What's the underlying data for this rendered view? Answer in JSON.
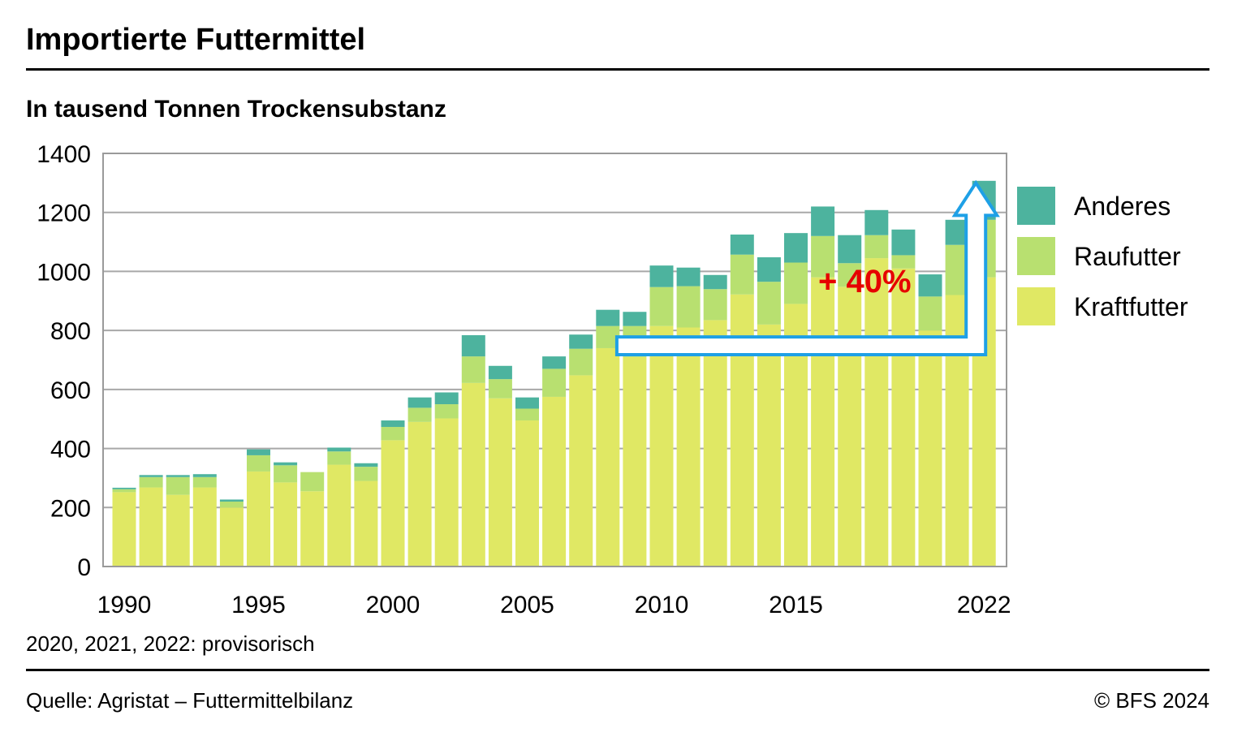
{
  "header": {
    "title": "Importierte Futtermittel",
    "subtitle": "In tausend Tonnen Trockensubstanz"
  },
  "footer": {
    "note": "2020, 2021, 2022: provisorisch",
    "source": "Quelle: Agristat – Futtermittelbilanz",
    "copyright": "© BFS 2024"
  },
  "annotation": {
    "label": "+ 40%",
    "color": "#e60000",
    "arrow_color": "#1ea0e6",
    "from_year": 2009,
    "to_year": 2022
  },
  "chart_data": {
    "type": "bar",
    "stacked": true,
    "title": "Importierte Futtermittel",
    "subtitle": "In tausend Tonnen Trockensubstanz",
    "xlabel": "",
    "ylabel": "",
    "ylim": [
      0,
      1400
    ],
    "yticks": [
      0,
      200,
      400,
      600,
      800,
      1000,
      1200,
      1400
    ],
    "xtick_labels": [
      "1990",
      "1995",
      "2000",
      "2005",
      "2010",
      "2015",
      "2022"
    ],
    "xtick_years": [
      1990,
      1995,
      2000,
      2005,
      2010,
      2015,
      2022
    ],
    "grid": true,
    "legend_position": "right",
    "categories": [
      1990,
      1991,
      1992,
      1993,
      1994,
      1995,
      1996,
      1997,
      1998,
      1999,
      2000,
      2001,
      2002,
      2003,
      2004,
      2005,
      2006,
      2007,
      2008,
      2009,
      2010,
      2011,
      2012,
      2013,
      2014,
      2015,
      2016,
      2017,
      2018,
      2019,
      2020,
      2021,
      2022
    ],
    "series": [
      {
        "name": "Kraftfutter",
        "color": "#e0e864",
        "values": [
          252,
          268,
          243,
          268,
          200,
          322,
          285,
          255,
          345,
          290,
          428,
          490,
          502,
          622,
          570,
          495,
          575,
          648,
          740,
          710,
          815,
          810,
          835,
          922,
          820,
          890,
          980,
          948,
          1045,
          1010,
          800,
          920,
          980
        ]
      },
      {
        "name": "Raufutter",
        "color": "#b8e070",
        "values": [
          10,
          35,
          60,
          35,
          20,
          55,
          58,
          65,
          45,
          48,
          45,
          48,
          48,
          90,
          65,
          40,
          95,
          90,
          75,
          105,
          132,
          140,
          105,
          135,
          145,
          140,
          140,
          80,
          78,
          45,
          115,
          170,
          195
        ]
      },
      {
        "name": "Anderes",
        "color": "#4db39e",
        "values": [
          5,
          7,
          7,
          10,
          7,
          20,
          10,
          0,
          13,
          12,
          22,
          35,
          40,
          72,
          45,
          38,
          42,
          48,
          55,
          48,
          73,
          63,
          48,
          68,
          83,
          100,
          100,
          95,
          85,
          87,
          75,
          85,
          132
        ]
      }
    ]
  }
}
